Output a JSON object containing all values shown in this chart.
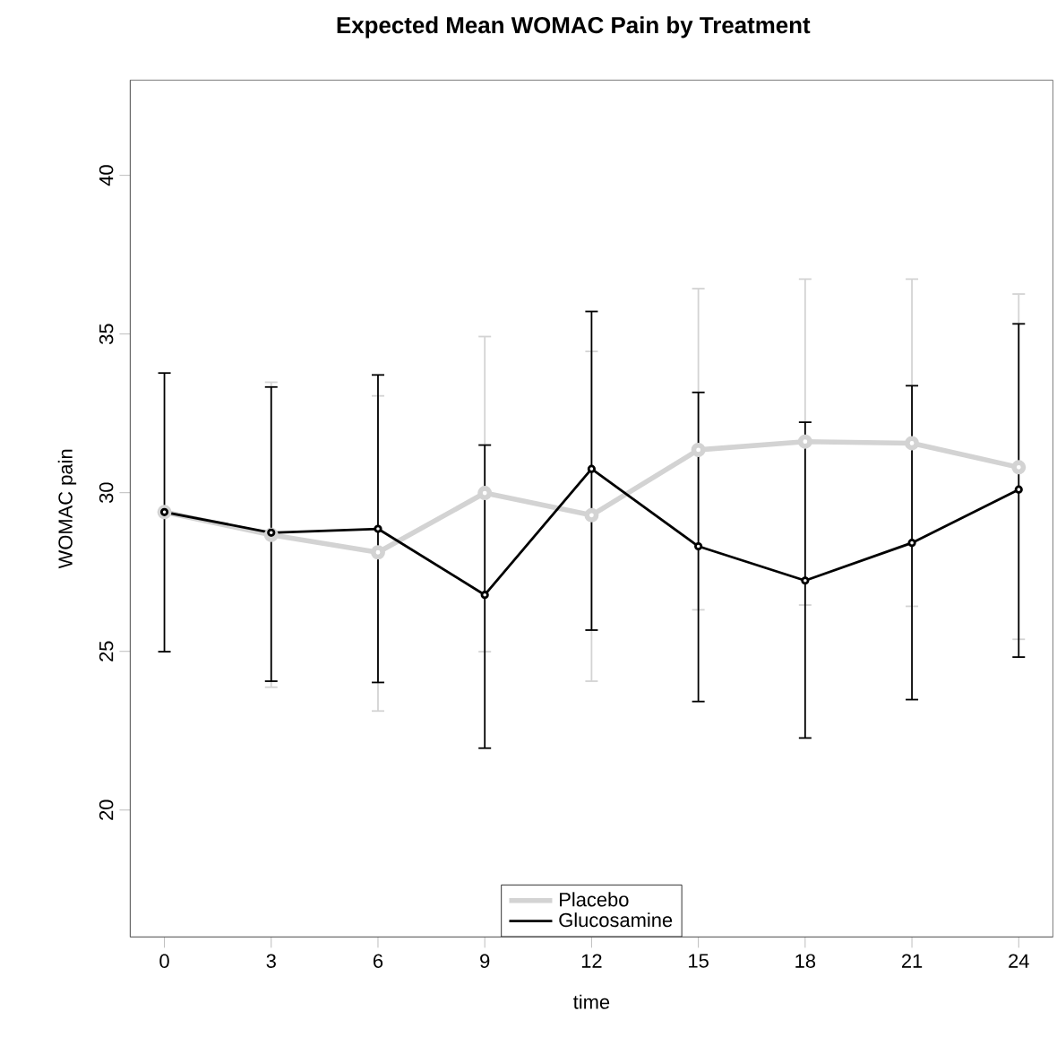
{
  "chart_data": {
    "type": "line",
    "title": "Expected Mean WOMAC Pain by Treatment",
    "xlabel": "time",
    "ylabel": "WOMAC pain",
    "x": [
      0,
      3,
      6,
      9,
      12,
      15,
      18,
      21,
      24
    ],
    "series": [
      {
        "name": "Placebo",
        "color": "#d3d3d3",
        "values": [
          29.39,
          28.67,
          28.12,
          29.99,
          29.29,
          31.35,
          31.61,
          31.56,
          30.8
        ],
        "errors": [
          null,
          [
            23.87,
            33.48
          ],
          [
            23.12,
            33.05
          ],
          [
            24.99,
            34.92
          ],
          [
            24.06,
            34.45
          ],
          [
            26.31,
            36.43
          ],
          [
            26.46,
            36.73
          ],
          [
            26.42,
            36.73
          ],
          [
            25.38,
            36.26
          ]
        ]
      },
      {
        "name": "Glucosamine",
        "color": "#000000",
        "values": [
          29.39,
          28.74,
          28.86,
          26.78,
          30.75,
          28.31,
          27.23,
          28.42,
          30.1
        ],
        "errors": [
          [
            24.99,
            33.77
          ],
          [
            24.06,
            33.33
          ],
          [
            24.02,
            33.71
          ],
          [
            21.95,
            31.5
          ],
          [
            25.67,
            35.71
          ],
          [
            23.42,
            33.16
          ],
          [
            22.27,
            32.22
          ],
          [
            23.48,
            33.37
          ],
          [
            24.82,
            35.32
          ]
        ]
      }
    ],
    "xlim": [
      -0.96,
      24.96
    ],
    "ylim": [
      16,
      43
    ],
    "xticks": [
      0,
      3,
      6,
      9,
      12,
      15,
      18,
      21,
      24
    ],
    "yticks": [
      20,
      25,
      30,
      35,
      40
    ],
    "grid": false,
    "legend": "bottom",
    "marker": "circle",
    "line_style": "solid"
  }
}
